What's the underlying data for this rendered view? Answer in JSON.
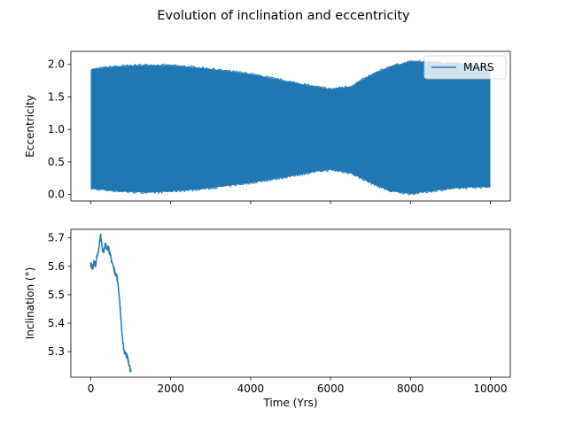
{
  "figure": {
    "title": "Evolution of inclination and eccentricity"
  },
  "chart_data": [
    {
      "type": "area",
      "ylabel": "Eccentricity",
      "xlabel": "",
      "xlim": [
        -500,
        10500
      ],
      "ylim": [
        -0.1,
        2.2
      ],
      "xticks": [
        0,
        2000,
        4000,
        6000,
        8000,
        10000
      ],
      "yticks": [
        0.0,
        0.5,
        1.0,
        1.5,
        2.0
      ],
      "ytick_labels": [
        "0.0",
        "0.5",
        "1.0",
        "1.5",
        "2.0"
      ],
      "show_xtick_labels": false,
      "grid": false,
      "legend": {
        "position": "top-right",
        "entries": [
          "MARS"
        ]
      },
      "series": [
        {
          "name": "MARS",
          "color": "#1f77b4",
          "x": [
            0,
            500,
            1000,
            1500,
            2000,
            2500,
            3000,
            3500,
            4000,
            4500,
            5000,
            5500,
            6000,
            6500,
            7000,
            7500,
            8000,
            8500,
            9000,
            9500,
            10000
          ],
          "upper": [
            1.92,
            1.96,
            1.98,
            1.99,
            1.98,
            1.96,
            1.93,
            1.89,
            1.85,
            1.79,
            1.73,
            1.67,
            1.62,
            1.66,
            1.83,
            1.97,
            2.04,
            2.04,
            2.02,
            1.99,
            1.97
          ],
          "lower": [
            0.09,
            0.06,
            0.04,
            0.03,
            0.05,
            0.07,
            0.1,
            0.14,
            0.18,
            0.23,
            0.28,
            0.34,
            0.38,
            0.33,
            0.18,
            0.05,
            0.01,
            0.05,
            0.09,
            0.11,
            0.12
          ]
        }
      ]
    },
    {
      "type": "line",
      "ylabel": "Inclination (°)",
      "xlabel": "Time (Yrs)",
      "xlim": [
        -500,
        10500
      ],
      "ylim": [
        5.21,
        5.73
      ],
      "xticks": [
        0,
        2000,
        4000,
        6000,
        8000,
        10000
      ],
      "xtick_labels": [
        "0",
        "2000",
        "4000",
        "6000",
        "8000",
        "10000"
      ],
      "yticks": [
        5.3,
        5.4,
        5.5,
        5.6,
        5.7
      ],
      "ytick_labels": [
        "5.3",
        "5.4",
        "5.5",
        "5.6",
        "5.7"
      ],
      "grid": false,
      "series": [
        {
          "name": "MARS",
          "color": "#1f77b4",
          "x": [
            0,
            40,
            80,
            120,
            160,
            200,
            240,
            280,
            320,
            360,
            400,
            440,
            480,
            520,
            560,
            600,
            640,
            680,
            720,
            760,
            800,
            840,
            880,
            920,
            960,
            1000
          ],
          "y": [
            5.61,
            5.59,
            5.62,
            5.6,
            5.64,
            5.66,
            5.71,
            5.67,
            5.65,
            5.68,
            5.66,
            5.67,
            5.64,
            5.62,
            5.6,
            5.58,
            5.57,
            5.54,
            5.48,
            5.4,
            5.33,
            5.3,
            5.29,
            5.28,
            5.25,
            5.23
          ]
        }
      ]
    }
  ]
}
